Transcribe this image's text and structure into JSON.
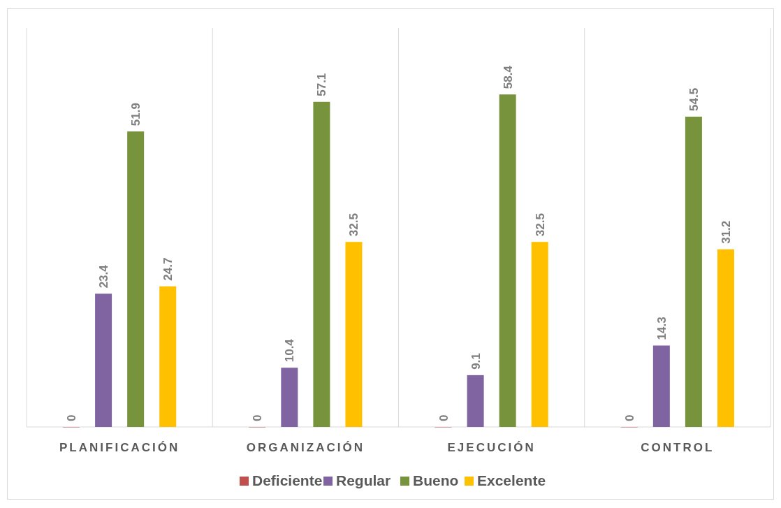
{
  "chart_data": {
    "type": "bar",
    "categories": [
      "PLANIFICACIÓN",
      "ORGANIZACIÓN",
      "EJECUCIÓN",
      "CONTROL"
    ],
    "series": [
      {
        "name": "Deficiente",
        "color": "#c0504d",
        "values": [
          0,
          0,
          0,
          0
        ]
      },
      {
        "name": "Regular",
        "color": "#8064a2",
        "values": [
          23.4,
          10.4,
          9.1,
          14.3
        ]
      },
      {
        "name": "Bueno",
        "color": "#77933c",
        "values": [
          51.9,
          57.1,
          58.4,
          54.5
        ]
      },
      {
        "name": "Excelente",
        "color": "#ffc000",
        "values": [
          24.7,
          32.5,
          32.5,
          31.2
        ]
      }
    ],
    "data_labels": true,
    "grid": "x",
    "legend": "bottom"
  }
}
